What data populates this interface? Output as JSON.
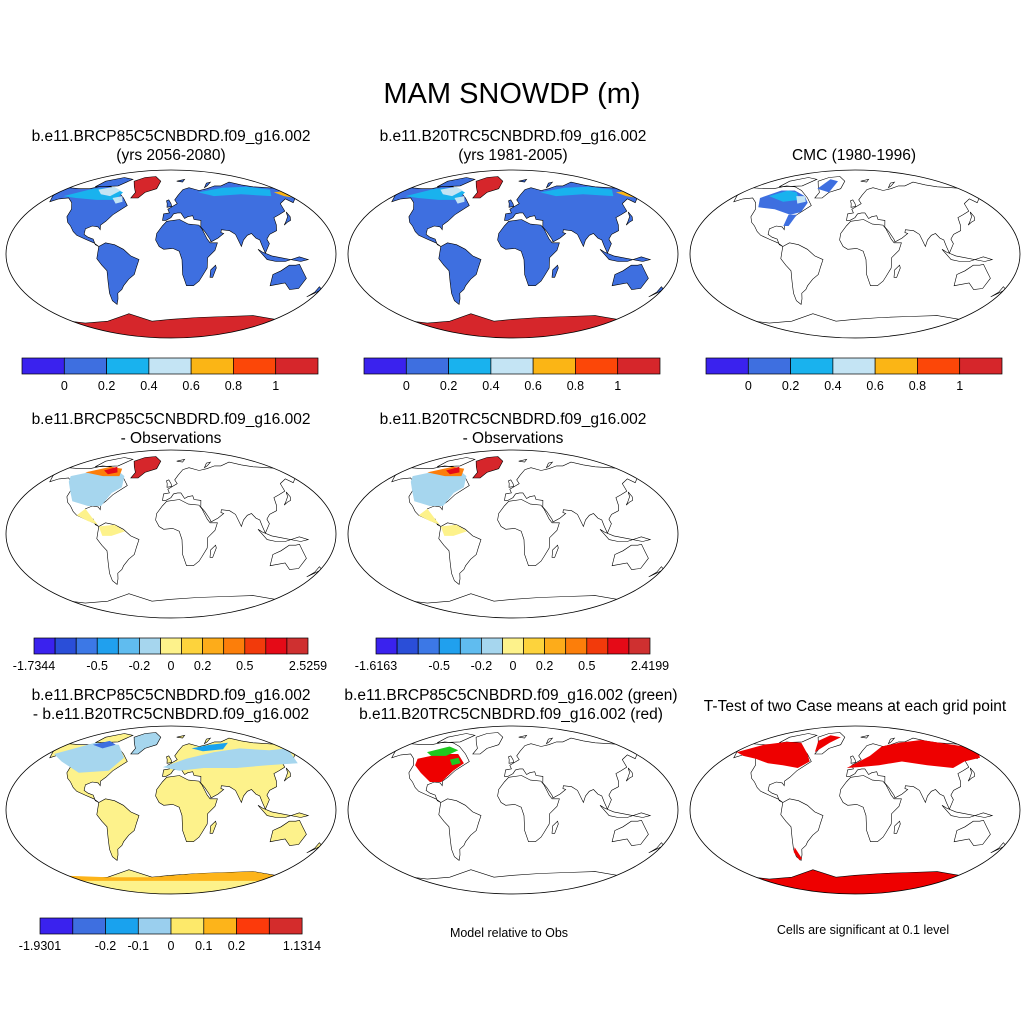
{
  "figure": {
    "title": "MAM SNOWDP (m)"
  },
  "panels": [
    {
      "id": "p1",
      "title1": "b.e11.BRCP85C5CNBDRD.f09_g16.002",
      "title2": "(yrs 2056-2080)",
      "fill": "model"
    },
    {
      "id": "p2",
      "title1": "b.e11.B20TRC5CNBDRD.f09_g16.002",
      "title2": "(yrs 1981-2005)",
      "fill": "model"
    },
    {
      "id": "p3",
      "title1": "CMC (1980-1996)",
      "title2": "",
      "fill": "obs"
    },
    {
      "id": "p4",
      "title1": "b.e11.BRCP85C5CNBDRD.f09_g16.002",
      "title2": "- Observations",
      "fill": "diff"
    },
    {
      "id": "p5",
      "title1": "b.e11.B20TRC5CNBDRD.f09_g16.002",
      "title2": "- Observations",
      "fill": "diff"
    },
    {
      "id": "p7",
      "title1": "b.e11.BRCP85C5CNBDRD.f09_g16.002",
      "title2": "- b.e11.B20TRC5CNBDRD.f09_g16.002",
      "fill": "casediff"
    },
    {
      "id": "p8",
      "title1": "b.e11.BRCP85C5CNBDRD.f09_g16.002 (green)",
      "title2": "b.e11.B20TRC5CNBDRD.f09_g16.002 (red)",
      "fill": "greenred"
    },
    {
      "id": "p9",
      "title1": "T-Test of two Case means at each grid point",
      "title2": "",
      "fill": "ttest"
    }
  ],
  "colorbars": {
    "snowdp": {
      "colors": [
        "#3a22ee",
        "#3e6fe0",
        "#19b2ee",
        "#c4e4f4",
        "#fbb515",
        "#fc4708",
        "#d6262b"
      ],
      "labels": [
        "0",
        "0.2",
        "0.4",
        "0.6",
        "0.8",
        "1"
      ]
    },
    "diff1": {
      "colors": [
        "#3a22ee",
        "#2a4ed8",
        "#3c78e6",
        "#20a0ee",
        "#60bcef",
        "#a6d6ee",
        "#fdf28b",
        "#fdd33c",
        "#fdac1a",
        "#fc7e0a",
        "#f23a0b",
        "#e50a17",
        "#cf3030"
      ],
      "labels": [
        "-1.7344",
        "-0.5",
        "-0.2",
        "0",
        "0.2",
        "0.5",
        "2.5259"
      ]
    },
    "diff2": {
      "colors": [
        "#3a22ee",
        "#2a4ed8",
        "#3c78e6",
        "#20a0ee",
        "#60bcef",
        "#a6d6ee",
        "#fdf28b",
        "#fdd33c",
        "#fdac1a",
        "#fc7e0a",
        "#f23a0b",
        "#e50a17",
        "#cf3030"
      ],
      "labels": [
        "-1.6163",
        "-0.5",
        "-0.2",
        "0",
        "0.2",
        "0.5",
        "2.4199"
      ]
    },
    "casediff": {
      "colors": [
        "#3a22ee",
        "#3e6fe0",
        "#19a2ee",
        "#9acfee",
        "#fde96a",
        "#fdb41a",
        "#fc3a0b",
        "#d42c2c"
      ],
      "labels": [
        "-1.9301",
        "-0.2",
        "-0.1",
        "0",
        "0.1",
        "0.2",
        "1.1314"
      ]
    }
  },
  "notes": {
    "model_obs": "Model relative to Obs",
    "significance": "Cells are significant at 0.1 level"
  },
  "colors": {
    "land_fill": "#3e6fe0",
    "antarctica": "#d6262b",
    "greenland": "#d6262b",
    "snow_light": "#c4e4f4",
    "snow_cyan": "#19b2ee",
    "snow_orange": "#fbb515",
    "diff_yellow": "#fdf28b",
    "diff_lightblue": "#a6d6ee",
    "sig_red": "#ee0000",
    "green_case": "#1ec81e"
  }
}
